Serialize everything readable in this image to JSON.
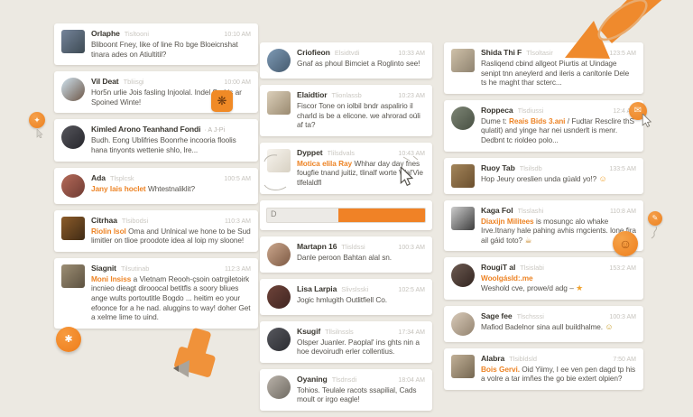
{
  "palette": {
    "background": "#ece9e2",
    "card": "#ffffff",
    "accent": "#ed8426",
    "name_color": "#39362f",
    "muted": "#cac7c1",
    "body_color": "#57544e",
    "arrow_orange": "#ef8a2d",
    "track_fill": "#f08226"
  },
  "columns": [
    {
      "id": "left",
      "items": [
        {
          "type": "card",
          "name": "Orlaphe",
          "handle": "Tisltooni",
          "time": "10:10 AM",
          "avatar": {
            "shape": "square",
            "c1": "#75849a",
            "c2": "#3d4a53"
          },
          "segments": [
            {
              "kind": "plain",
              "text": "Bliboont Fney, like of line Ro bge Bloeicnshat tinara ades on Atiultitil?"
            }
          ]
        },
        {
          "type": "card",
          "name": "Vil Deat",
          "handle": "Tbliisgi",
          "time": "10:00 AM",
          "avatar": {
            "shape": "circle",
            "c1": "#cfe2ee",
            "c2": "#6d5747"
          },
          "sticker": {
            "icon_name": "bug-sticker-icon",
            "glyph": "❋"
          },
          "segments": [
            {
              "kind": "plain",
              "text": "Hor5n urlie Jois fasling Injoolal. Indel Sad is ar Spoined Winte!"
            }
          ]
        },
        {
          "type": "card",
          "name": "Kimled Arono Teanhand Fondi",
          "suffix": "· A J-Pi",
          "handle": "",
          "time": "",
          "avatar": {
            "shape": "circle",
            "c1": "#56565c",
            "c2": "#26262c"
          },
          "segments": [
            {
              "kind": "plain",
              "text": "Budh. Eong Ublifries Boonrhe incooria floolis hana tinyonts wettenie shlo, lre..."
            }
          ]
        },
        {
          "type": "card",
          "name": "Ada",
          "handle": "Tlsplcsk",
          "time": "100:5 AM",
          "avatar": {
            "shape": "circle",
            "c1": "#b56b5a",
            "c2": "#6e3a32"
          },
          "segments": [
            {
              "kind": "accent",
              "text": "Jany lais hoclet"
            },
            {
              "kind": "plain",
              "text": " Whtestnaliklit?"
            }
          ]
        },
        {
          "type": "card",
          "name": "Citrhaa",
          "handle": "Tlsibodsi",
          "time": "110:3 AM",
          "avatar": {
            "shape": "square",
            "c1": "#8c5c2a",
            "c2": "#402b15"
          },
          "segments": [
            {
              "kind": "accent",
              "text": "Riolin Isol"
            },
            {
              "kind": "plain",
              "text": " Oma and Unlnical we hone to be Sud limitler on tlioe proodote idea al loip my sloone!"
            }
          ]
        },
        {
          "type": "card",
          "name": "Siagnit",
          "handle": "Tilsutinab",
          "time": "112:3 AM",
          "avatar": {
            "shape": "square",
            "c1": "#9c8e74",
            "c2": "#5c5140"
          },
          "segments": [
            {
              "kind": "accent",
              "text": "Moni Insiss"
            },
            {
              "kind": "plain",
              "text": " a Vietnam Reooh-çsoin oatrgiletoirk incnieo dieagt dirooocal betitfls a soory bliues ange wults portoutitle Bogdo ... heitim eo your efoonce for a he nad. aluggins to way! doher Get a xelme lime to uind."
            }
          ]
        }
      ]
    },
    {
      "id": "middle",
      "items": [
        {
          "type": "card",
          "name": "Criofieon",
          "handle": "Elsidtvdi",
          "time": "10:33 AM",
          "avatar": {
            "shape": "circle",
            "c1": "#7e9ab5",
            "c2": "#455a6e"
          },
          "segments": [
            {
              "kind": "plain",
              "text": "Gnaf as phoul Bimciet a Roglinto see!"
            }
          ]
        },
        {
          "type": "card",
          "name": "Elaidtior",
          "handle": "Tlionlassb",
          "time": "10:23 AM",
          "avatar": {
            "shape": "square",
            "c1": "#dbcfba",
            "c2": "#9a8a70"
          },
          "segments": [
            {
              "kind": "plain",
              "text": "Fiscor Tone on iolbil bndr aspalirio il charld is be a elicone. we ahrorad oúli af ta?"
            }
          ]
        },
        {
          "type": "card",
          "name": "Dyppet",
          "handle": "Tlilsdvals",
          "time": "10:43 AM",
          "avatar": {
            "shape": "square",
            "c1": "#f7f4ee",
            "c2": "#d8d1c3"
          },
          "segments": [
            {
              "kind": "accent",
              "text": "Motica elila Ray"
            },
            {
              "kind": "plain",
              "text": " Whhar day day fnes fougfie tnand juitiz, tlinalf worte Wal'Vie tlfelaldfl"
            }
          ]
        },
        {
          "type": "progress",
          "label": "D",
          "fill_from_percent": 45,
          "fill_color": "#f08226"
        },
        {
          "type": "card",
          "name": "Martapn 16",
          "handle": "Tlisldssi",
          "time": "100:3 AM",
          "avatar": {
            "shape": "circle",
            "c1": "#cba78d",
            "c2": "#7d5a44"
          },
          "segments": [
            {
              "kind": "plain",
              "text": "Danle peroon Bahtan alal sn."
            }
          ]
        },
        {
          "type": "card",
          "name": "Lisa Larpia",
          "handle": "Slivslsski",
          "time": "102:5 AM",
          "avatar": {
            "shape": "circle",
            "c1": "#6f443a",
            "c2": "#402521"
          },
          "segments": [
            {
              "kind": "plain",
              "text": "Jogic hmlugith Outlitfiell Co."
            }
          ]
        },
        {
          "type": "card",
          "name": "Ksugif",
          "handle": "Tllsilnssls",
          "time": "17:34 AM",
          "avatar": {
            "shape": "circle",
            "c1": "#57585e",
            "c2": "#2b2c31"
          },
          "segments": [
            {
              "kind": "plain",
              "text": "Olsper Juanler. Paoplal' ins ghts nin a hoe devoirudh erler collentius."
            }
          ]
        },
        {
          "type": "card",
          "name": "Oyaning",
          "handle": "Tlsdnsdi",
          "time": "18:04 AM",
          "avatar": {
            "shape": "circle",
            "c1": "#bab3aa",
            "c2": "#6f6a62"
          },
          "segments": [
            {
              "kind": "plain",
              "text": "Tohios. Teulale racots ssapilial, Cads moult or irgo eagle!"
            }
          ]
        }
      ]
    },
    {
      "id": "right",
      "items": [
        {
          "type": "card",
          "name": "Shida Thi F",
          "handle": "Tlsoltasir",
          "time": "123:5 AM",
          "avatar": {
            "shape": "square",
            "c1": "#cfc1a9",
            "c2": "#8f8370"
          },
          "segments": [
            {
              "kind": "plain",
              "text": "Rasliqend cbind allgeot Piurtis at Uindage senipt tnn aneylerd and ileris a canltonle Dele ts he maght thar scterc..."
            }
          ]
        },
        {
          "type": "card",
          "name": "Roppeca",
          "handle": "Tlsdiussi",
          "time": "12:4 AM",
          "avatar": {
            "shape": "circle",
            "c1": "#7e8676",
            "c2": "#474f42"
          },
          "segments": [
            {
              "kind": "plain",
              "text": "Dume t: "
            },
            {
              "kind": "accent",
              "text": "Reais Bids 3.ani"
            },
            {
              "kind": "plain",
              "text": " / Fudtar Resclire thS qulatit) and yinge har nei usnderlt is menr. Dedbnt tc rioldeo polo..."
            }
          ]
        },
        {
          "type": "card",
          "name": "Ruoy Tab",
          "handle": "Tlsilsdb",
          "time": "133:5 AM",
          "avatar": {
            "shape": "square",
            "c1": "#a3855a",
            "c2": "#6b4f2e"
          },
          "segments": [
            {
              "kind": "plain",
              "text": "Hop Jeury oreslien unda gúald yo!? "
            },
            {
              "kind": "emoji",
              "text": "☺",
              "color": "#f0a32f"
            }
          ]
        },
        {
          "type": "card",
          "name": "Kaga Fol",
          "handle": "Tlsslashi",
          "time": "110:8 AM",
          "avatar": {
            "shape": "square",
            "c1": "#cccccc",
            "c2": "#3d3d3d"
          },
          "reaction": {
            "icon_name": "smiley-reaction-icon",
            "glyph": "☺"
          },
          "segments": [
            {
              "kind": "accent",
              "text": "Diaxijn Militees"
            },
            {
              "kind": "plain",
              "text": " is mosungc alo whake Irve.Itnany hale pahing avhis rngcients. lone fira ail gáid toto? "
            },
            {
              "kind": "emoji",
              "text": "☕",
              "color": "#c98a2e"
            }
          ]
        },
        {
          "type": "card",
          "name": "RougiT al",
          "handle": "Tlsislabi",
          "time": "153:2 AM",
          "avatar": {
            "shape": "circle",
            "c1": "#6d5b52",
            "c2": "#32241f"
          },
          "segments": [
            {
              "kind": "accent",
              "text": "Woolgásld:.me"
            },
            {
              "kind": "break"
            },
            {
              "kind": "plain",
              "text": "Weshold cve, prowe/d adg – "
            },
            {
              "kind": "emoji",
              "text": "★",
              "color": "#f0a32f"
            }
          ]
        },
        {
          "type": "card",
          "name": "Sage fee",
          "handle": "Tlschsssi",
          "time": "100:3 AM",
          "avatar": {
            "shape": "circle",
            "c1": "#d8cab9",
            "c2": "#93836f"
          },
          "segments": [
            {
              "kind": "plain",
              "text": "Mafiod Badelnor sina aull buildhalme. "
            },
            {
              "kind": "emoji",
              "text": "☺",
              "color": "#caa02f"
            }
          ]
        },
        {
          "type": "card",
          "name": "Alabra",
          "handle": "Tlsibldsld",
          "time": "7:50 AM",
          "avatar": {
            "shape": "square",
            "c1": "#c1b097",
            "c2": "#756751"
          },
          "segments": [
            {
              "kind": "accent",
              "text": "Bois Gervi."
            },
            {
              "kind": "plain",
              "text": " Oid Yiimy, I ee ven pen dagd tp his a volre a tar imñes the go bie extert olpien?"
            }
          ]
        }
      ]
    }
  ],
  "floating": {
    "fab_glyph": "✱",
    "badge_left_glyph": "✦",
    "badge_right1_glyph": "✉",
    "badge_right2_glyph": "✎"
  }
}
